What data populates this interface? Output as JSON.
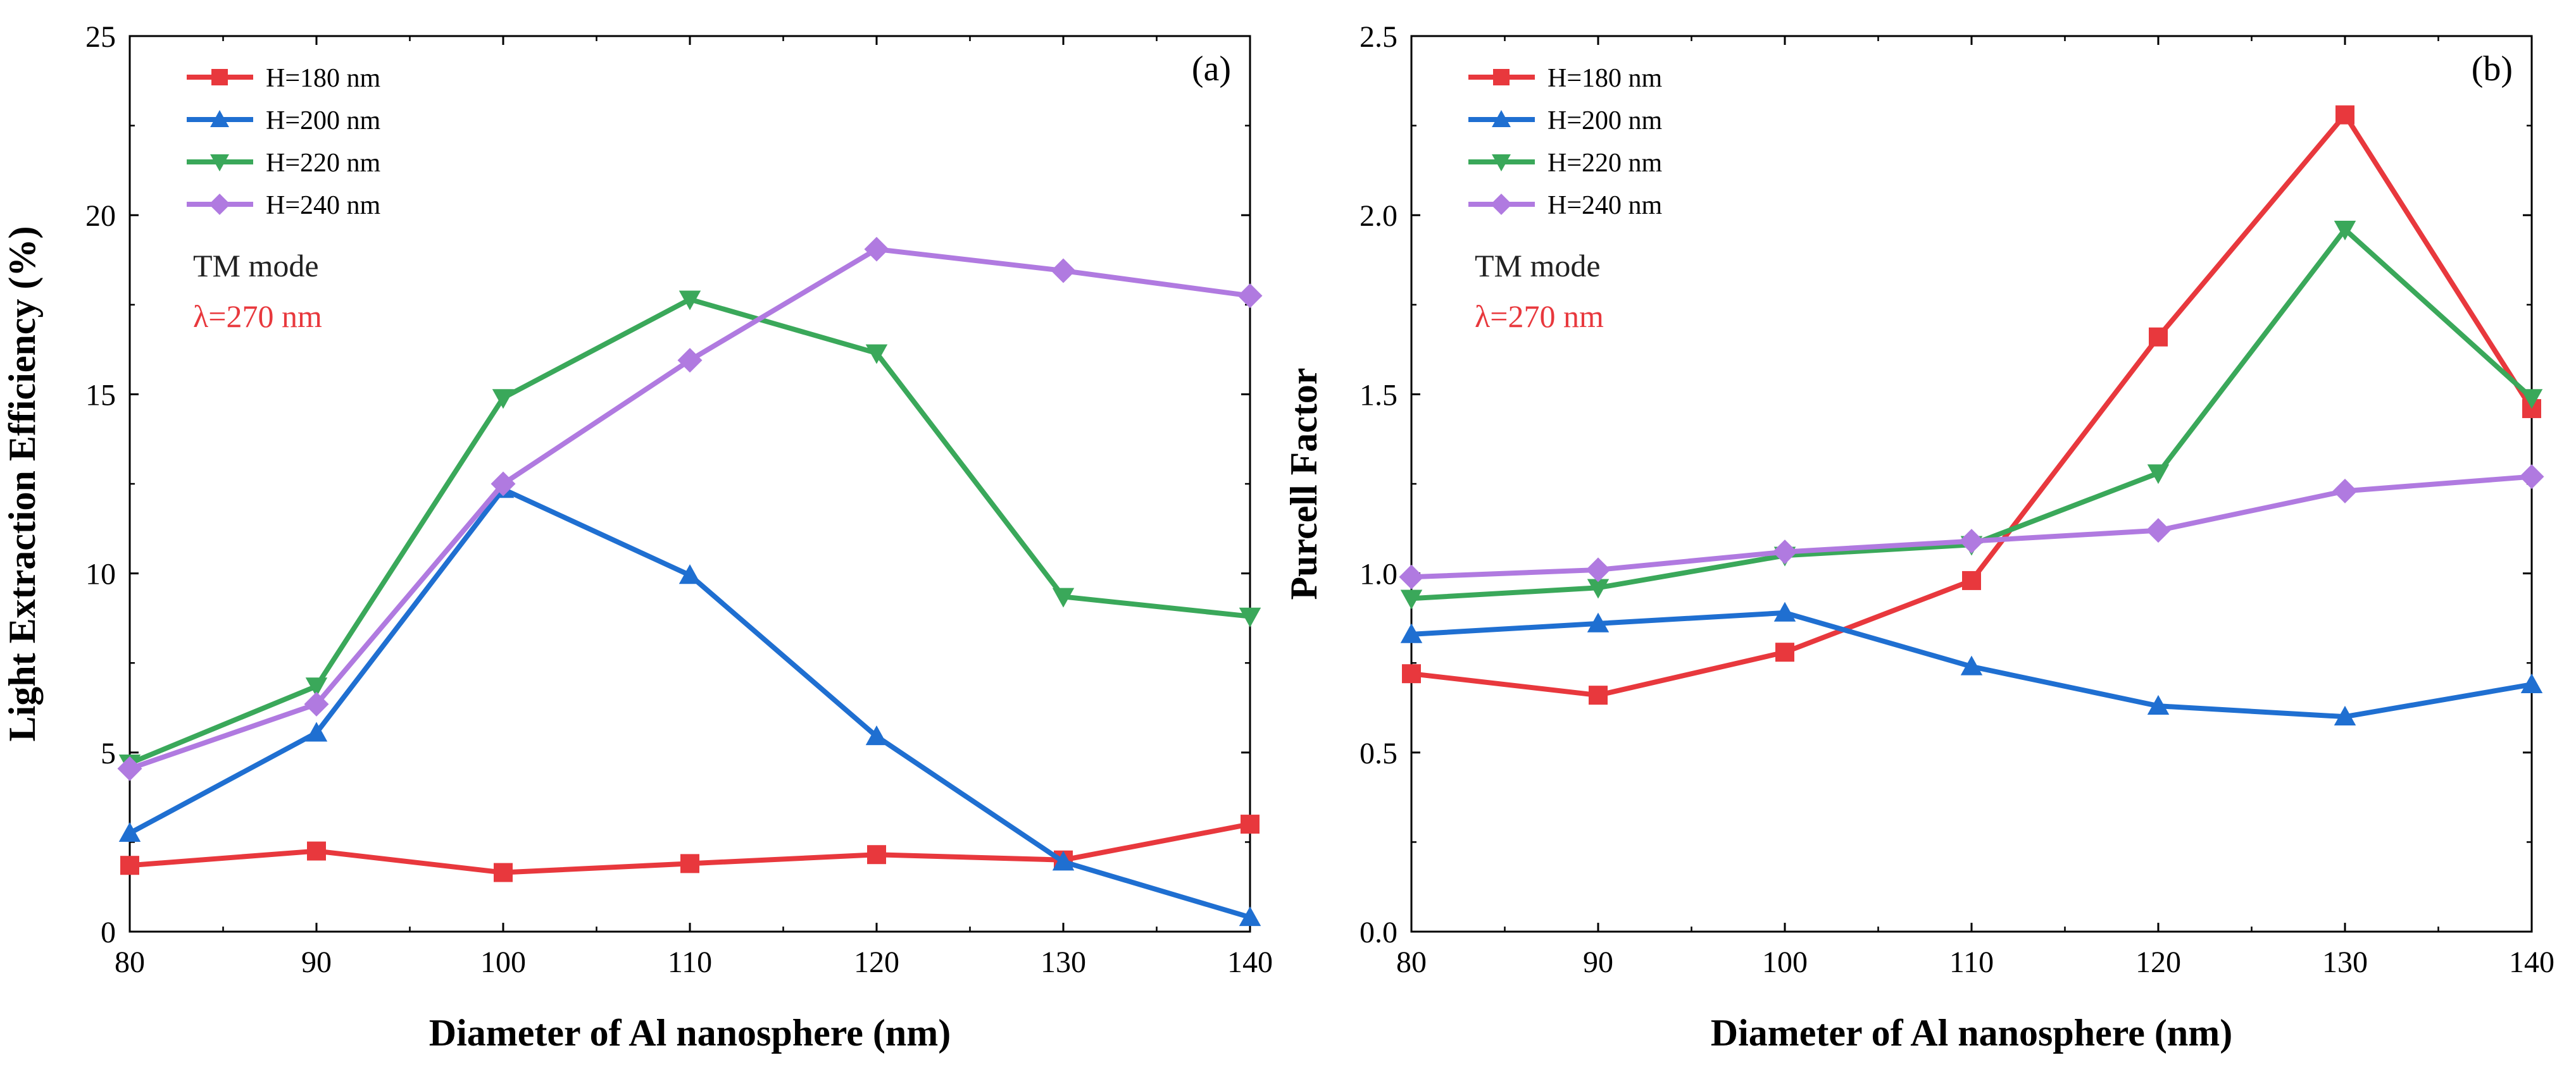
{
  "chart_data": [
    {
      "type": "line",
      "panel_label": "(a)",
      "xlabel": "Diameter of Al nanosphere (nm)",
      "ylabel": "Light Extraction Efficiency (%)",
      "xlim": [
        80,
        140
      ],
      "ylim": [
        0,
        25
      ],
      "x_ticks": [
        80,
        90,
        100,
        110,
        120,
        130,
        140
      ],
      "y_ticks": [
        0,
        5,
        10,
        15,
        20,
        25
      ],
      "y_tick_format": 0,
      "x": [
        80,
        90,
        100,
        110,
        120,
        130,
        140
      ],
      "legend_position": "top-left",
      "series": [
        {
          "name": "H=180 nm",
          "color": "#e8383d",
          "marker": "square",
          "values": [
            1.85,
            2.25,
            1.65,
            1.9,
            2.15,
            2.0,
            3.0
          ]
        },
        {
          "name": "H=200 nm",
          "color": "#1f6fd1",
          "marker": "triangle-up",
          "values": [
            2.75,
            5.55,
            12.35,
            9.95,
            5.45,
            1.95,
            0.4
          ]
        },
        {
          "name": "H=220 nm",
          "color": "#3aa85a",
          "marker": "triangle-down",
          "values": [
            4.7,
            6.85,
            14.9,
            17.65,
            16.15,
            9.35,
            8.8
          ]
        },
        {
          "name": "H=240 nm",
          "color": "#b07ae0",
          "marker": "diamond",
          "values": [
            4.55,
            6.35,
            12.5,
            15.95,
            19.05,
            18.45,
            17.75
          ]
        }
      ],
      "annotations": [
        {
          "text": "TM mode",
          "color": "#222222"
        },
        {
          "text": "λ=270 nm",
          "color": "#e8383d"
        }
      ]
    },
    {
      "type": "line",
      "panel_label": "(b)",
      "xlabel": "Diameter of Al nanosphere (nm)",
      "ylabel": "Purcell Factor",
      "xlim": [
        80,
        140
      ],
      "ylim": [
        0,
        2.5
      ],
      "x_ticks": [
        80,
        90,
        100,
        110,
        120,
        130,
        140
      ],
      "y_ticks": [
        0.0,
        0.5,
        1.0,
        1.5,
        2.0,
        2.5
      ],
      "y_tick_format": 1,
      "x": [
        80,
        90,
        100,
        110,
        120,
        130,
        140
      ],
      "legend_position": "top-left",
      "series": [
        {
          "name": "H=180 nm",
          "color": "#e8383d",
          "marker": "square",
          "values": [
            0.72,
            0.66,
            0.78,
            0.98,
            1.66,
            2.28,
            1.46
          ]
        },
        {
          "name": "H=200 nm",
          "color": "#1f6fd1",
          "marker": "triangle-up",
          "values": [
            0.83,
            0.86,
            0.89,
            0.74,
            0.63,
            0.6,
            0.69
          ]
        },
        {
          "name": "H=220 nm",
          "color": "#3aa85a",
          "marker": "triangle-down",
          "values": [
            0.93,
            0.96,
            1.05,
            1.08,
            1.28,
            1.96,
            1.49
          ]
        },
        {
          "name": "H=240 nm",
          "color": "#b07ae0",
          "marker": "diamond",
          "values": [
            0.99,
            1.01,
            1.06,
            1.09,
            1.12,
            1.23,
            1.27
          ]
        }
      ],
      "annotations": [
        {
          "text": "TM mode",
          "color": "#222222"
        },
        {
          "text": "λ=270 nm",
          "color": "#e8383d"
        }
      ]
    }
  ]
}
